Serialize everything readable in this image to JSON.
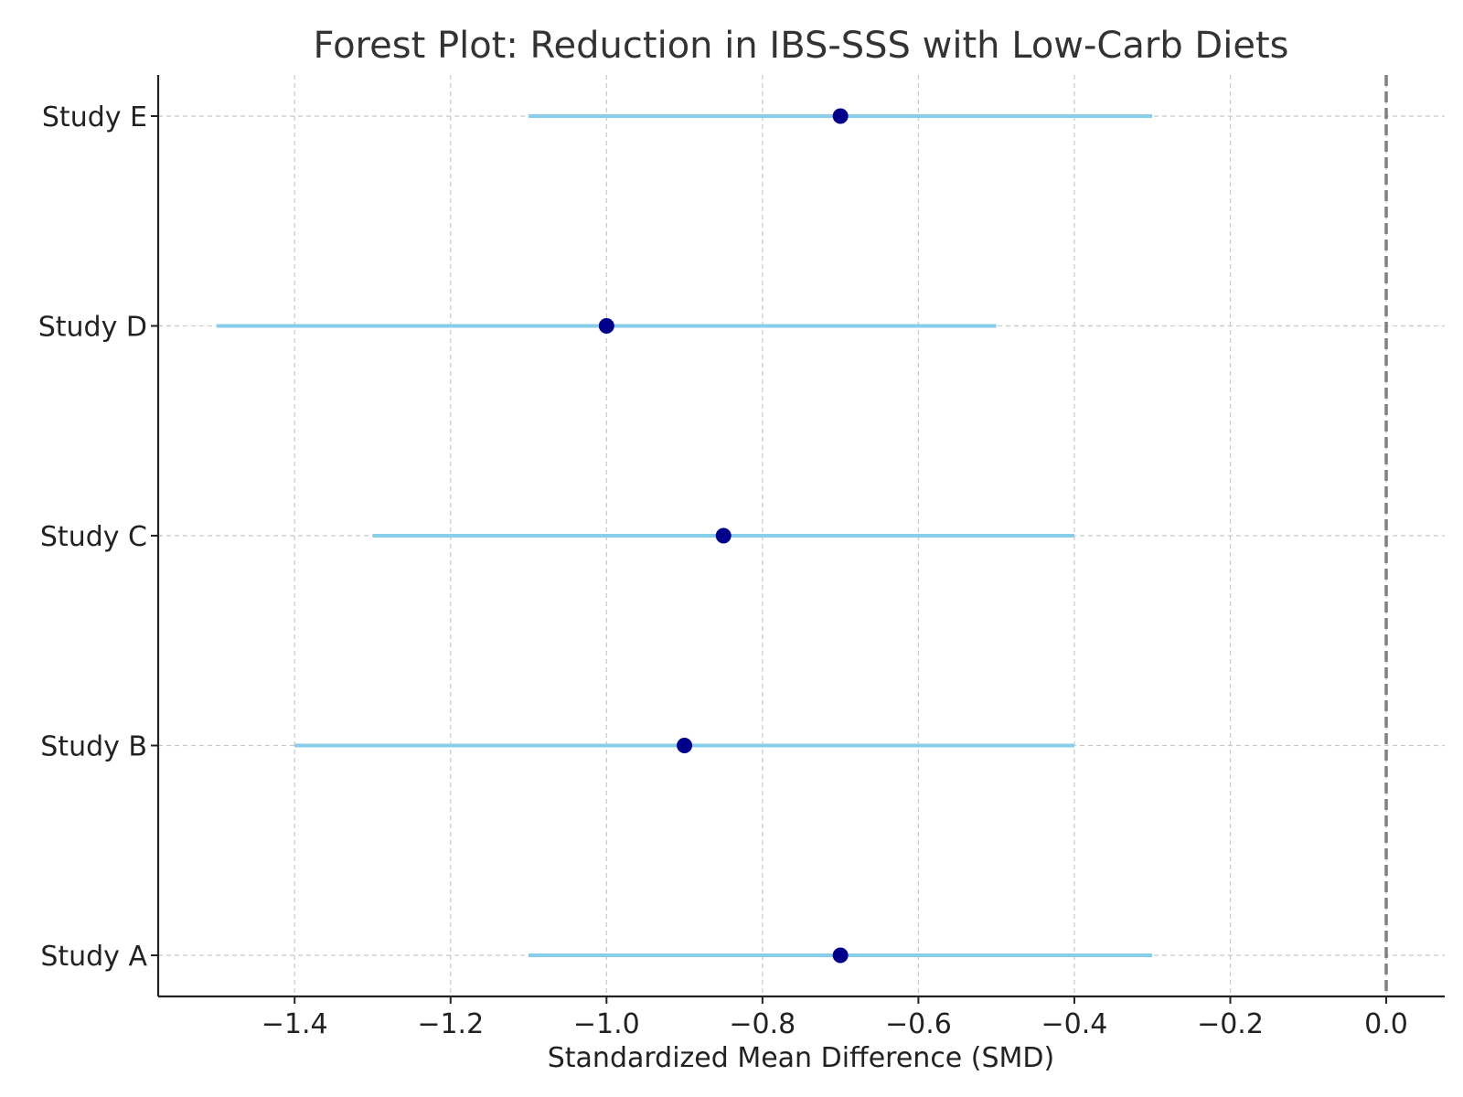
{
  "chart_data": {
    "type": "scatter",
    "title": "Forest Plot: Reduction in IBS-SSS with Low-Carb Diets",
    "xlabel": "Standardized Mean Difference (SMD)",
    "ylabel": "",
    "xlim": [
      -1.575,
      0.075
    ],
    "x_ticks": [
      -1.4,
      -1.2,
      -1.0,
      -0.8,
      -0.6,
      -0.4,
      -0.2,
      0.0
    ],
    "x_tick_labels": [
      "−1.4",
      "−1.2",
      "−1.0",
      "−0.8",
      "−0.6",
      "−0.4",
      "−0.2",
      "0.0"
    ],
    "categories": [
      "Study A",
      "Study B",
      "Study C",
      "Study D",
      "Study E"
    ],
    "estimates": [
      -0.7,
      -0.9,
      -0.85,
      -1.0,
      -0.7
    ],
    "ci_lower": [
      -1.1,
      -1.4,
      -1.3,
      -1.5,
      -1.1
    ],
    "ci_upper": [
      -0.3,
      -0.4,
      -0.4,
      -0.5,
      -0.3
    ],
    "reference_line": 0.0,
    "grid": true,
    "colors": {
      "ci_line": "#87CEEB",
      "point": "#00008B",
      "reference_line": "#808080",
      "grid": "#c8c8c8",
      "axis": "#222222",
      "title": "#333333"
    }
  }
}
